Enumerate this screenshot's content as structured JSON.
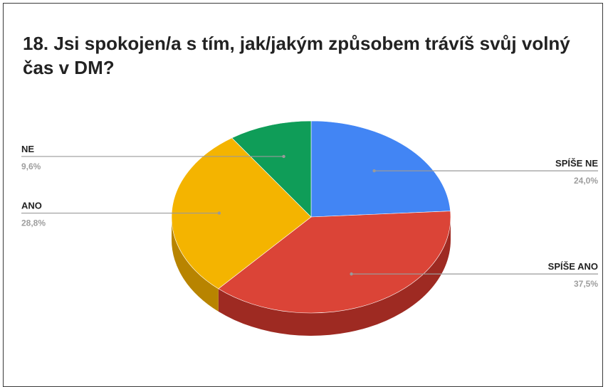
{
  "title": "18. Jsi spokojen/a s tím, jak/jakým způsobem trávíš svůj volný čas v DM?",
  "chart_data": {
    "type": "pie",
    "title": "18. Jsi spokojen/a s tím, jak/jakým způsobem trávíš svůj volný čas v DM?",
    "three_d": true,
    "labels": [
      "SPÍŠE NE",
      "SPÍŠE ANO",
      "ANO",
      "NE"
    ],
    "values": [
      24.0,
      37.5,
      28.8,
      9.6
    ],
    "value_labels": [
      "24,0%",
      "37,5%",
      "28,8%",
      "9,6%"
    ],
    "colors": [
      "#4285f4",
      "#db4437",
      "#f4b400",
      "#0f9d58"
    ],
    "side_colors": [
      "#2a5bb5",
      "#9e2a22",
      "#b88400",
      "#0a6d3d"
    ],
    "start_angle": "12 o'clock",
    "direction": "clockwise",
    "label_sides": [
      "right",
      "right",
      "left",
      "left"
    ]
  }
}
